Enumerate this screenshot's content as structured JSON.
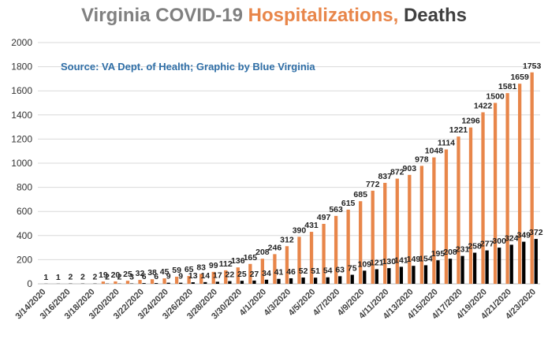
{
  "title": {
    "part1": "Virginia COVID-19 ",
    "part2": "Hospitalizations,",
    "part3": " Deaths"
  },
  "source": "Source: VA Dept. of Health; Graphic by Blue Virginia",
  "colors": {
    "hospitalizations": "#e8864a",
    "deaths": "#000000",
    "title_gray": "#808080",
    "title_dark": "#404040",
    "gridline": "#d9d9d9"
  },
  "chart_data": {
    "type": "bar",
    "title": "Virginia COVID-19 Hospitalizations, Deaths",
    "xlabel": "",
    "ylabel": "",
    "ylim": [
      0,
      2000
    ],
    "yticks": [
      0,
      200,
      400,
      600,
      800,
      1000,
      1200,
      1400,
      1600,
      1800,
      2000
    ],
    "grid": true,
    "categories": [
      "3/14/2020",
      "3/15/2020",
      "3/16/2020",
      "3/17/2020",
      "3/18/2020",
      "3/19/2020",
      "3/20/2020",
      "3/21/2020",
      "3/22/2020",
      "3/23/2020",
      "3/24/2020",
      "3/25/2020",
      "3/26/2020",
      "3/27/2020",
      "3/28/2020",
      "3/29/2020",
      "3/30/2020",
      "3/31/2020",
      "4/1/2020",
      "4/2/2020",
      "4/3/2020",
      "4/4/2020",
      "4/5/2020",
      "4/6/2020",
      "4/7/2020",
      "4/8/2020",
      "4/9/2020",
      "4/10/2020",
      "4/11/2020",
      "4/12/2020",
      "4/13/2020",
      "4/14/2020",
      "4/15/2020",
      "4/16/2020",
      "4/17/2020",
      "4/18/2020",
      "4/19/2020",
      "4/20/2020",
      "4/21/2020",
      "4/22/2020",
      "4/23/2020"
    ],
    "xtick_labels": [
      "3/14/2020",
      "",
      "3/16/2020",
      "",
      "3/18/2020",
      "",
      "3/20/2020",
      "",
      "3/22/2020",
      "",
      "3/24/2020",
      "",
      "3/26/2020",
      "",
      "3/28/2020",
      "",
      "3/30/2020",
      "",
      "4/1/2020",
      "",
      "4/3/2020",
      "",
      "4/5/2020",
      "",
      "4/7/2020",
      "",
      "4/9/2020",
      "",
      "4/11/2020",
      "",
      "4/13/2020",
      "",
      "4/15/2020",
      "",
      "4/17/2020",
      "",
      "4/19/2020",
      "",
      "4/21/2020",
      "",
      "4/23/2020"
    ],
    "series": [
      {
        "name": "Hospitalizations",
        "color": "#e8864a",
        "values": [
          null,
          null,
          null,
          null,
          null,
          19,
          20,
          25,
          32,
          38,
          45,
          59,
          65,
          83,
          99,
          112,
          136,
          165,
          208,
          246,
          312,
          390,
          431,
          497,
          563,
          615,
          685,
          772,
          837,
          872,
          903,
          978,
          1048,
          1114,
          1221,
          1296,
          1422,
          1500,
          1581,
          1659,
          1753
        ]
      },
      {
        "name": "Deaths",
        "color": "#000000",
        "values": [
          1,
          1,
          2,
          2,
          2,
          2,
          2,
          3,
          6,
          6,
          9,
          9,
          13,
          14,
          17,
          22,
          25,
          27,
          34,
          41,
          46,
          52,
          51,
          54,
          63,
          75,
          109,
          121,
          130,
          141,
          149,
          154,
          195,
          208,
          231,
          258,
          277,
          300,
          324,
          349,
          372
        ]
      }
    ]
  }
}
